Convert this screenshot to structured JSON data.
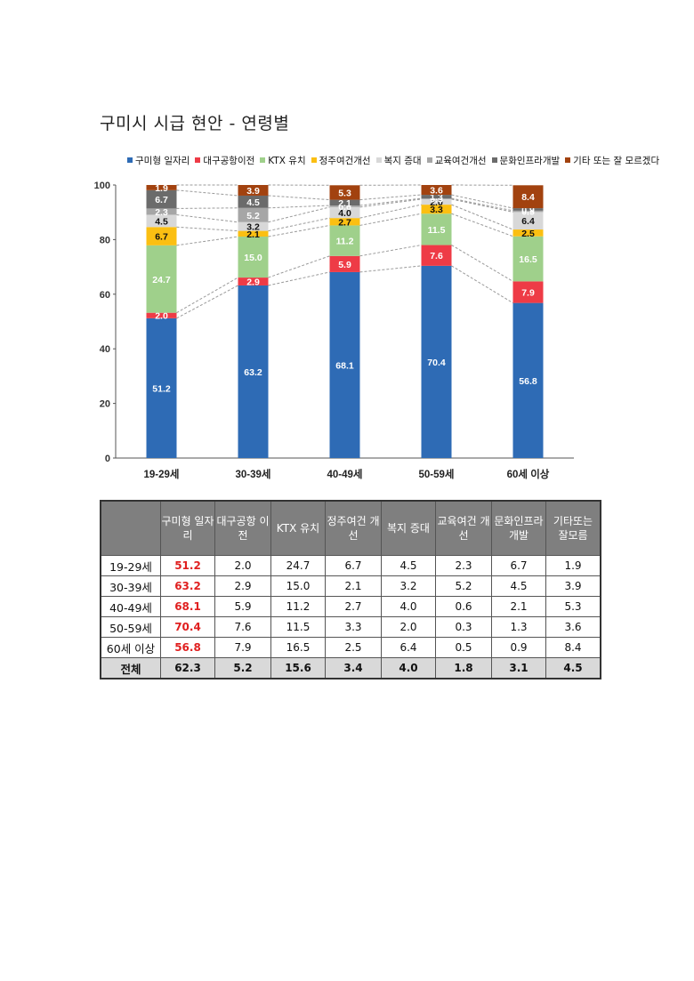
{
  "page_title": "구미시 시급 현안 - 연령별",
  "chart_data": {
    "type": "bar",
    "stacked": true,
    "categories": [
      "19-29세",
      "30-39세",
      "40-49세",
      "50-59세",
      "60세 이상"
    ],
    "series": [
      {
        "name": "구미형 일자리",
        "color": "#2e6bb5",
        "values": [
          51.2,
          63.2,
          68.1,
          70.4,
          56.8
        ]
      },
      {
        "name": "대구공항이전",
        "color": "#ee3b46",
        "values": [
          2.0,
          2.9,
          5.9,
          7.6,
          7.9
        ]
      },
      {
        "name": "KTX 유치",
        "color": "#9fd08b",
        "values": [
          24.7,
          15.0,
          11.2,
          11.5,
          16.5
        ]
      },
      {
        "name": "정주여건개선",
        "color": "#fbbf12",
        "values": [
          6.7,
          2.1,
          2.7,
          3.3,
          2.5
        ]
      },
      {
        "name": "복지 증대",
        "color": "#d8d8d8",
        "values": [
          4.5,
          3.2,
          4.0,
          2.0,
          6.4
        ]
      },
      {
        "name": "교육여건개선",
        "color": "#a6a6a6",
        "values": [
          2.3,
          5.2,
          0.6,
          0.3,
          0.5
        ]
      },
      {
        "name": "문화인프라개발",
        "color": "#6b6b6b",
        "values": [
          6.7,
          4.5,
          2.1,
          1.3,
          0.9
        ]
      },
      {
        "name": "기타 또는 잘 모르겠다",
        "color": "#a2420f",
        "values": [
          1.9,
          3.9,
          5.3,
          3.6,
          8.4
        ]
      }
    ],
    "ylim": [
      0,
      100
    ],
    "yticks": [
      "0",
      "20",
      "40",
      "60",
      "80",
      "100"
    ],
    "legend_position": "top"
  },
  "table": {
    "headers": [
      "",
      "구미형 일자리",
      "대구공항 이전",
      "KTX 유치",
      "정주여건 개선",
      "복지 증대",
      "교육여건 개선",
      "문화인프라\n개발",
      "기타또는\n잘모름"
    ],
    "rows": [
      {
        "label": "19-29세",
        "values": [
          "51.2",
          "2.0",
          "24.7",
          "6.7",
          "4.5",
          "2.3",
          "6.7",
          "1.9"
        ]
      },
      {
        "label": "30-39세",
        "values": [
          "63.2",
          "2.9",
          "15.0",
          "2.1",
          "3.2",
          "5.2",
          "4.5",
          "3.9"
        ]
      },
      {
        "label": "40-49세",
        "values": [
          "68.1",
          "5.9",
          "11.2",
          "2.7",
          "4.0",
          "0.6",
          "2.1",
          "5.3"
        ]
      },
      {
        "label": "50-59세",
        "values": [
          "70.4",
          "7.6",
          "11.5",
          "3.3",
          "2.0",
          "0.3",
          "1.3",
          "3.6"
        ]
      },
      {
        "label": "60세 이상",
        "values": [
          "56.8",
          "7.9",
          "16.5",
          "2.5",
          "6.4",
          "0.5",
          "0.9",
          "8.4"
        ]
      }
    ],
    "total": {
      "label": "전체",
      "values": [
        "62.3",
        "5.2",
        "15.6",
        "3.4",
        "4.0",
        "1.8",
        "3.1",
        "4.5"
      ]
    }
  }
}
